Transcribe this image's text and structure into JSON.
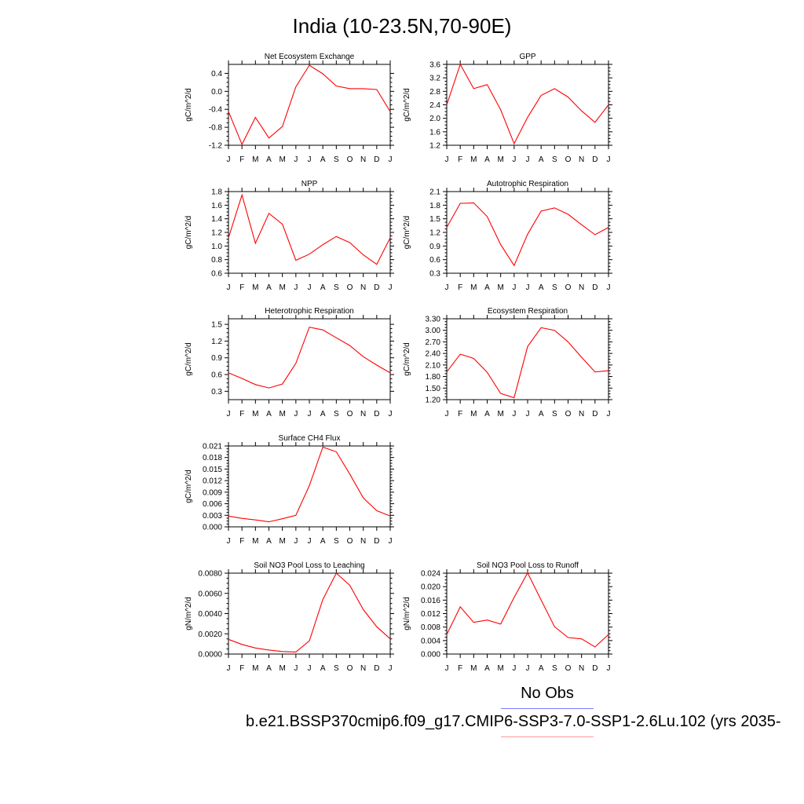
{
  "title": "India (10-23.5N,70-90E)",
  "colors": {
    "model": "#ff0000",
    "obs": "#7b7bff",
    "axis": "#000000"
  },
  "legend": {
    "obs_label": "No Obs",
    "case_label": "b.e21.BSSP370cmip6.f09_g17.CMIP6-SSP3-7.0-SSP1-2.6Lu.102 (yrs 2035-"
  },
  "chart_data": [
    {
      "type": "line",
      "title": "Net Ecosystem Exchange",
      "ylabel": "gC/m^2/d",
      "x": [
        "J",
        "F",
        "M",
        "A",
        "M",
        "J",
        "J",
        "A",
        "S",
        "O",
        "N",
        "D",
        "J"
      ],
      "ylim": [
        -1.2,
        0.6
      ],
      "yticks": [
        -1.2,
        -0.8,
        -0.4,
        0.0,
        0.4
      ],
      "yticklabels": [
        "-1.2",
        "-0.8",
        "-0.4",
        "0.0",
        "0.4"
      ],
      "series": [
        {
          "values": [
            -0.45,
            -1.18,
            -0.58,
            -1.04,
            -0.78,
            0.1,
            0.58,
            0.39,
            0.12,
            0.06,
            0.06,
            0.04,
            -0.45
          ]
        }
      ]
    },
    {
      "type": "line",
      "title": "GPP",
      "ylabel": "gC/m^2/d",
      "x": [
        "J",
        "F",
        "M",
        "A",
        "M",
        "J",
        "J",
        "A",
        "S",
        "O",
        "N",
        "D",
        "J"
      ],
      "ylim": [
        1.2,
        3.6
      ],
      "yticks": [
        1.2,
        1.6,
        2.0,
        2.4,
        2.8,
        3.2,
        3.6
      ],
      "yticklabels": [
        "1.2",
        "1.6",
        "2.0",
        "2.4",
        "2.8",
        "3.2",
        "3.6"
      ],
      "series": [
        {
          "values": [
            2.4,
            3.6,
            2.88,
            3.0,
            2.25,
            1.25,
            2.03,
            2.68,
            2.88,
            2.63,
            2.22,
            1.88,
            2.4
          ]
        }
      ]
    },
    {
      "type": "line",
      "title": "NPP",
      "ylabel": "gC/m^2/d",
      "x": [
        "J",
        "F",
        "M",
        "A",
        "M",
        "J",
        "J",
        "A",
        "S",
        "O",
        "N",
        "D",
        "J"
      ],
      "ylim": [
        0.6,
        1.8
      ],
      "yticks": [
        0.6,
        0.8,
        1.0,
        1.2,
        1.4,
        1.6,
        1.8
      ],
      "yticklabels": [
        "0.6",
        "0.8",
        "1.0",
        "1.2",
        "1.4",
        "1.6",
        "1.8"
      ],
      "series": [
        {
          "values": [
            1.12,
            1.75,
            1.04,
            1.48,
            1.32,
            0.79,
            0.88,
            1.02,
            1.14,
            1.05,
            0.87,
            0.73,
            1.12
          ]
        }
      ]
    },
    {
      "type": "line",
      "title": "Autotrophic Respiration",
      "ylabel": "gC/m^2/d",
      "x": [
        "J",
        "F",
        "M",
        "A",
        "M",
        "J",
        "J",
        "A",
        "S",
        "O",
        "N",
        "D",
        "J"
      ],
      "ylim": [
        0.3,
        2.1
      ],
      "yticks": [
        0.3,
        0.6,
        0.9,
        1.2,
        1.5,
        1.8,
        2.1
      ],
      "yticklabels": [
        "0.3",
        "0.6",
        "0.9",
        "1.2",
        "1.5",
        "1.8",
        "2.1"
      ],
      "series": [
        {
          "values": [
            1.31,
            1.84,
            1.85,
            1.55,
            0.93,
            0.47,
            1.16,
            1.67,
            1.74,
            1.6,
            1.37,
            1.15,
            1.31
          ]
        }
      ]
    },
    {
      "type": "line",
      "title": "Heterotrophic Respiration",
      "ylabel": "gC/m^2/d",
      "x": [
        "J",
        "F",
        "M",
        "A",
        "M",
        "J",
        "J",
        "A",
        "S",
        "O",
        "N",
        "D",
        "J"
      ],
      "ylim": [
        0.15,
        1.6
      ],
      "yticks": [
        0.3,
        0.6,
        0.9,
        1.2,
        1.5
      ],
      "yticklabels": [
        "0.3",
        "0.6",
        "0.9",
        "1.2",
        "1.5"
      ],
      "series": [
        {
          "values": [
            0.63,
            0.53,
            0.42,
            0.36,
            0.43,
            0.8,
            1.45,
            1.4,
            1.26,
            1.12,
            0.92,
            0.77,
            0.63
          ]
        }
      ]
    },
    {
      "type": "line",
      "title": "Ecosystem Respiration",
      "ylabel": "gC/m^2/d",
      "x": [
        "J",
        "F",
        "M",
        "A",
        "M",
        "J",
        "J",
        "A",
        "S",
        "O",
        "N",
        "D",
        "J"
      ],
      "ylim": [
        1.2,
        3.3
      ],
      "yticks": [
        1.2,
        1.5,
        1.8,
        2.1,
        2.4,
        2.7,
        3.0,
        3.3
      ],
      "yticklabels": [
        "1.20",
        "1.50",
        "1.80",
        "2.10",
        "2.40",
        "2.70",
        "3.00",
        "3.30"
      ],
      "series": [
        {
          "values": [
            1.92,
            2.38,
            2.27,
            1.91,
            1.36,
            1.25,
            2.58,
            3.07,
            3.0,
            2.7,
            2.3,
            1.92,
            1.95
          ]
        }
      ]
    },
    {
      "type": "line",
      "title": "Surface CH4 Flux",
      "ylabel": "gC/m^2/d",
      "x": [
        "J",
        "F",
        "M",
        "A",
        "M",
        "J",
        "J",
        "A",
        "S",
        "O",
        "N",
        "D",
        "J"
      ],
      "ylim": [
        0.0,
        0.021
      ],
      "yticks": [
        0.0,
        0.003,
        0.006,
        0.009,
        0.012,
        0.015,
        0.018,
        0.021
      ],
      "yticklabels": [
        "0.000",
        "0.003",
        "0.006",
        "0.009",
        "0.012",
        "0.015",
        "0.018",
        "0.021"
      ],
      "series": [
        {
          "values": [
            0.0028,
            0.0022,
            0.0018,
            0.0013,
            0.0021,
            0.003,
            0.0107,
            0.0207,
            0.0195,
            0.0137,
            0.0075,
            0.0042,
            0.0028
          ]
        }
      ]
    },
    {
      "type": "line",
      "title": "Soil NO3 Pool Loss to Leaching",
      "ylabel": "gN/m^2/d",
      "x": [
        "J",
        "F",
        "M",
        "A",
        "M",
        "J",
        "J",
        "A",
        "S",
        "O",
        "N",
        "D",
        "J"
      ],
      "ylim": [
        0.0,
        0.008
      ],
      "yticks": [
        0.0,
        0.002,
        0.004,
        0.006,
        0.008
      ],
      "yticklabels": [
        "0.0000",
        "0.0020",
        "0.0040",
        "0.0060",
        "0.0080"
      ],
      "series": [
        {
          "values": [
            0.00145,
            0.00095,
            0.0006,
            0.0004,
            0.00025,
            0.0002,
            0.0013,
            0.0054,
            0.008,
            0.0068,
            0.0044,
            0.0027,
            0.0015
          ]
        }
      ]
    },
    {
      "type": "line",
      "title": "Soil NO3 Pool Loss to Runoff",
      "ylabel": "gN/m^2/d",
      "x": [
        "J",
        "F",
        "M",
        "A",
        "M",
        "J",
        "J",
        "A",
        "S",
        "O",
        "N",
        "D",
        "J"
      ],
      "ylim": [
        0.0,
        0.024
      ],
      "yticks": [
        0.0,
        0.004,
        0.008,
        0.012,
        0.016,
        0.02,
        0.024
      ],
      "yticklabels": [
        "0.000",
        "0.004",
        "0.008",
        "0.012",
        "0.016",
        "0.020",
        "0.024"
      ],
      "series": [
        {
          "values": [
            0.0058,
            0.014,
            0.0094,
            0.0101,
            0.0089,
            0.0168,
            0.0241,
            0.016,
            0.0081,
            0.0049,
            0.0045,
            0.0021,
            0.0058
          ]
        }
      ]
    }
  ]
}
